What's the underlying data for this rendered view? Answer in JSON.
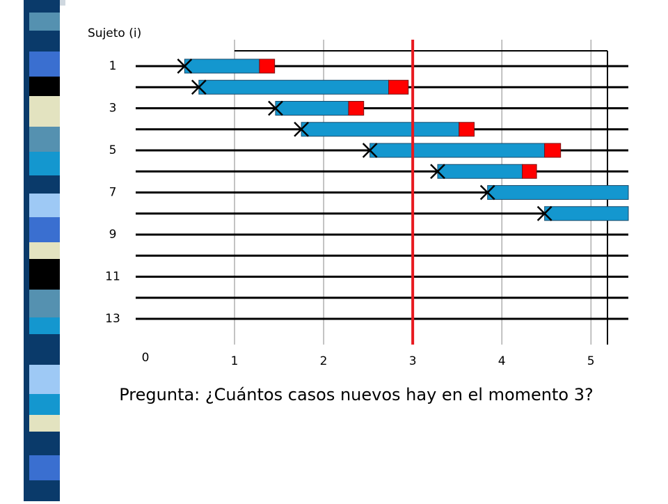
{
  "chart_data": {
    "type": "timeline",
    "y_label": "Sujeto (i)",
    "categories": [
      "1",
      null,
      "3",
      null,
      "5",
      null,
      "7",
      null,
      "9",
      null,
      "11",
      null,
      "13"
    ],
    "series": [
      {
        "color": "#000000",
        "values": [
          0.44,
          0.6,
          1.46,
          1.75,
          2.52,
          3.28,
          3.84,
          4.48,
          null,
          null,
          null,
          null,
          null
        ]
      },
      {
        "color": "#1497cf",
        "values": [
          1.28,
          2.73,
          2.28,
          3.52,
          4.48,
          4.23,
          null,
          null,
          null,
          null,
          null,
          null,
          null
        ]
      },
      {
        "color": "#ff0000",
        "values": [
          1.45,
          2.95,
          2.45,
          3.69,
          4.66,
          4.39,
          null,
          null,
          null,
          null,
          null,
          null,
          null
        ]
      }
    ],
    "xlim": [
      0,
      5.42
    ],
    "xticks": [
      0,
      1,
      2,
      3,
      4,
      5
    ],
    "grid": true,
    "marker_x": 3,
    "marker_color": "#e8191f",
    "question": "Pregunta: ¿Cuántos casos nuevos hay en el momento 3?"
  }
}
